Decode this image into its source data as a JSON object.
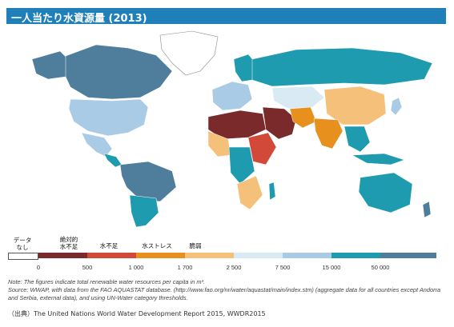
{
  "title": "一人当たり水資源量 (2013)",
  "legend": {
    "no_data": "データ\nなし",
    "categories": [
      {
        "label": "絶対的\n水不足"
      },
      {
        "label": "水不足"
      },
      {
        "label": "水ストレス"
      },
      {
        "label": "脆弱"
      }
    ],
    "ticks": [
      "0",
      "500",
      "1 000",
      "1 700",
      "2 500",
      "7 500",
      "15 000",
      "50 000"
    ],
    "colors": [
      "#ffffff",
      "#7a2a2a",
      "#d2493a",
      "#e8901e",
      "#f5c07a",
      "#d9eaf5",
      "#a9cbe6",
      "#1f9bb0",
      "#4f7e9c"
    ]
  },
  "notes": [
    "Note: The figures indicate total renewable water resources per capita in m³.",
    "Source: WWAP, with data from the FAO AQUASTAT database. (http://www.fao.org/nr/water/aquastat/main/index.stm) (aggregate data for all countries except Andorra and Serbia, external data), and using UN-Water category thresholds."
  ],
  "source_line": "（出典）The  United Nations World Water Development Report 2015,  WWDR2015"
}
